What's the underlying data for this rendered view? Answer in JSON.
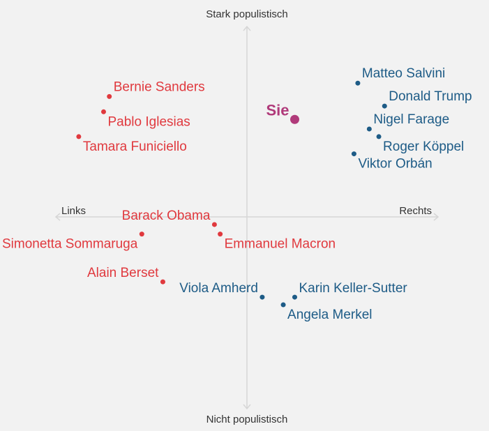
{
  "chart_data": {
    "type": "scatter",
    "title": "",
    "xlabel_left": "Links",
    "xlabel_right": "Rechts",
    "ylabel_top": "Stark populistisch",
    "ylabel_bottom": "Nicht populistisch",
    "xlim": [
      -100,
      100
    ],
    "ylim": [
      -100,
      100
    ],
    "grid": false,
    "colors": {
      "left": "#e0393e",
      "right": "#1d5b86",
      "you": "#b03a7a",
      "axis": "#d6d6d6"
    },
    "you": {
      "label": "Sie",
      "x": 25,
      "y": 51,
      "side": "you",
      "anchor": "end"
    },
    "points": [
      {
        "label": "Bernie Sanders",
        "x": -72,
        "y": 63,
        "side": "left",
        "anchor": "start"
      },
      {
        "label": "Pablo Iglesias",
        "x": -75,
        "y": 55,
        "side": "left",
        "anchor": "start"
      },
      {
        "label": "Tamara Funiciello",
        "x": -88,
        "y": 42,
        "side": "left",
        "anchor": "start"
      },
      {
        "label": "Barack Obama",
        "x": -17,
        "y": -4,
        "side": "left",
        "anchor": "end"
      },
      {
        "label": "Emmanuel Macron",
        "x": -14,
        "y": -9,
        "side": "left",
        "anchor": "start"
      },
      {
        "label": "Simonetta Sommaruga",
        "x": -55,
        "y": -9,
        "side": "left",
        "anchor": "end"
      },
      {
        "label": "Alain Berset",
        "x": -44,
        "y": -34,
        "side": "left",
        "anchor": "end"
      },
      {
        "label": "Matteo Salvini",
        "x": 58,
        "y": 70,
        "side": "right",
        "anchor": "start"
      },
      {
        "label": "Donald Trump",
        "x": 72,
        "y": 58,
        "side": "right",
        "anchor": "start"
      },
      {
        "label": "Nigel Farage",
        "x": 64,
        "y": 46,
        "side": "right",
        "anchor": "start"
      },
      {
        "label": "Roger Köppel",
        "x": 69,
        "y": 42,
        "side": "right",
        "anchor": "start"
      },
      {
        "label": "Viktor Orbán",
        "x": 56,
        "y": 33,
        "side": "right",
        "anchor": "start"
      },
      {
        "label": "Viola Amherd",
        "x": 8,
        "y": -42,
        "side": "right",
        "anchor": "end"
      },
      {
        "label": "Karin Keller-Sutter",
        "x": 25,
        "y": -42,
        "side": "right",
        "anchor": "start"
      },
      {
        "label": "Angela Merkel",
        "x": 19,
        "y": -46,
        "side": "right",
        "anchor": "start"
      }
    ]
  }
}
